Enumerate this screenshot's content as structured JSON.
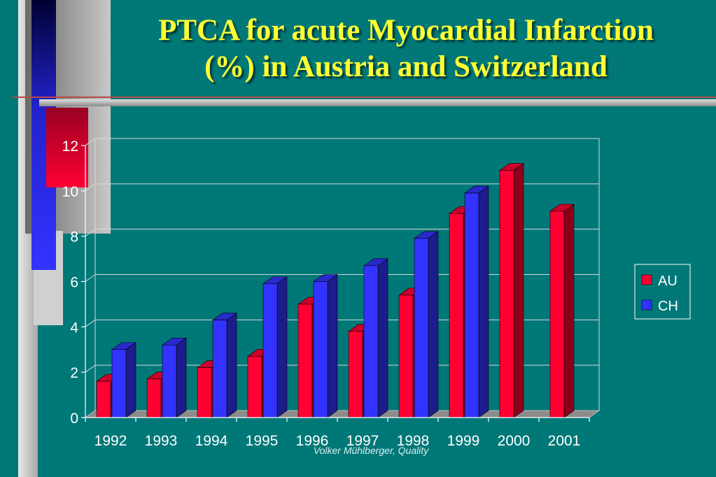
{
  "slide": {
    "title_line1": "PTCA for acute Myocardial Infarction",
    "title_line2": "(%) in Austria and Switzerland",
    "footer": "Volker Mühlberger, Quality"
  },
  "colors": {
    "background": "#007878",
    "title": "#ffff33",
    "au_front": "#ff0033",
    "ch_front": "#3333ff"
  },
  "chart_data": {
    "type": "bar",
    "bar_style": "3d",
    "categories": [
      "1992",
      "1993",
      "1994",
      "1995",
      "1996",
      "1997",
      "1998",
      "1999",
      "2000",
      "2001"
    ],
    "series": [
      {
        "name": "AU",
        "color": "#ff0033",
        "values": [
          1.6,
          1.7,
          2.2,
          2.7,
          5.0,
          3.8,
          5.4,
          9.0,
          10.9,
          9.1
        ]
      },
      {
        "name": "CH",
        "color": "#3333ff",
        "values": [
          3.0,
          3.2,
          4.3,
          5.9,
          6.0,
          6.7,
          7.9,
          9.9,
          null,
          null
        ]
      }
    ],
    "yticks": [
      0,
      2,
      4,
      6,
      8,
      10,
      12
    ],
    "ylim": [
      0,
      12
    ],
    "grid": true,
    "legend_position": "right",
    "title": "",
    "xlabel": "",
    "ylabel": ""
  }
}
